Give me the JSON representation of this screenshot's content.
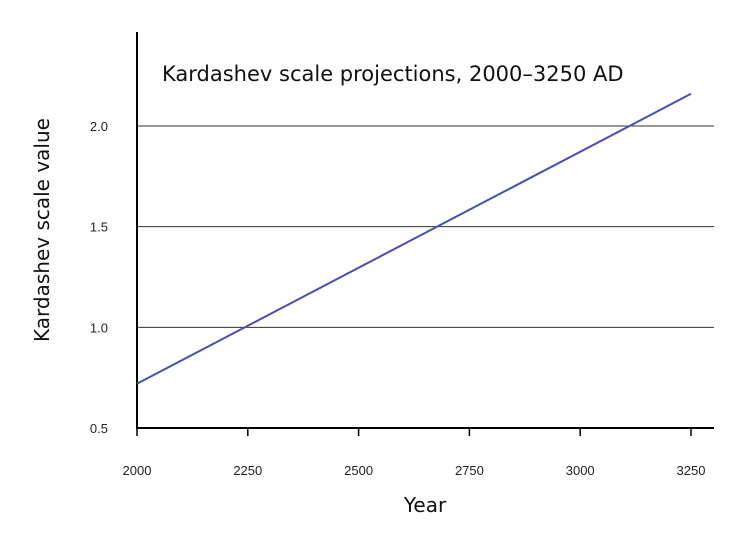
{
  "chart_data": {
    "type": "line",
    "title": "Kardashev scale projections, 2000–3250 AD",
    "xlabel": "Year",
    "ylabel": "Kardashev scale value",
    "xlim": [
      2000,
      3250
    ],
    "ylim": [
      0.5,
      2.25
    ],
    "x_ticks": [
      "2000",
      "2250",
      "2500",
      "2750",
      "3000",
      "3250"
    ],
    "y_ticks": [
      "0.5",
      "1.0",
      "1.5",
      "2.0"
    ],
    "grid": "horizontal",
    "series": [
      {
        "color": "#4a4fb0",
        "x": [
          2000,
          3250
        ],
        "y": [
          0.72,
          2.16
        ]
      }
    ]
  }
}
